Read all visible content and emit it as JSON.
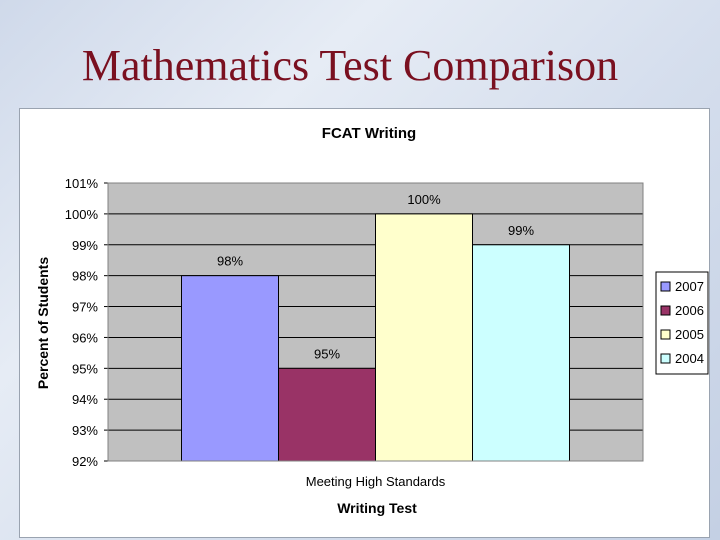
{
  "slide": {
    "title": "Mathematics Test Comparison"
  },
  "chart_data": {
    "type": "bar",
    "title": "FCAT Writing",
    "xlabel": "Writing Test",
    "ylabel": "Percent of Students",
    "categories": [
      "Meeting High Standards"
    ],
    "series": [
      {
        "name": "2007",
        "values": [
          98
        ],
        "color": "#9999ff",
        "label": "98%"
      },
      {
        "name": "2006",
        "values": [
          95
        ],
        "color": "#993366",
        "label": "95%"
      },
      {
        "name": "2005",
        "values": [
          100
        ],
        "color": "#ffffcc",
        "label": "100%"
      },
      {
        "name": "2004",
        "values": [
          99
        ],
        "color": "#ccffff",
        "label": "99%"
      }
    ],
    "ylim": [
      92,
      101
    ],
    "yticks": [
      "92%",
      "93%",
      "94%",
      "95%",
      "96%",
      "97%",
      "98%",
      "99%",
      "100%",
      "101%"
    ],
    "grid": true,
    "legend": "right",
    "plot_background": "#c0c0c0"
  }
}
